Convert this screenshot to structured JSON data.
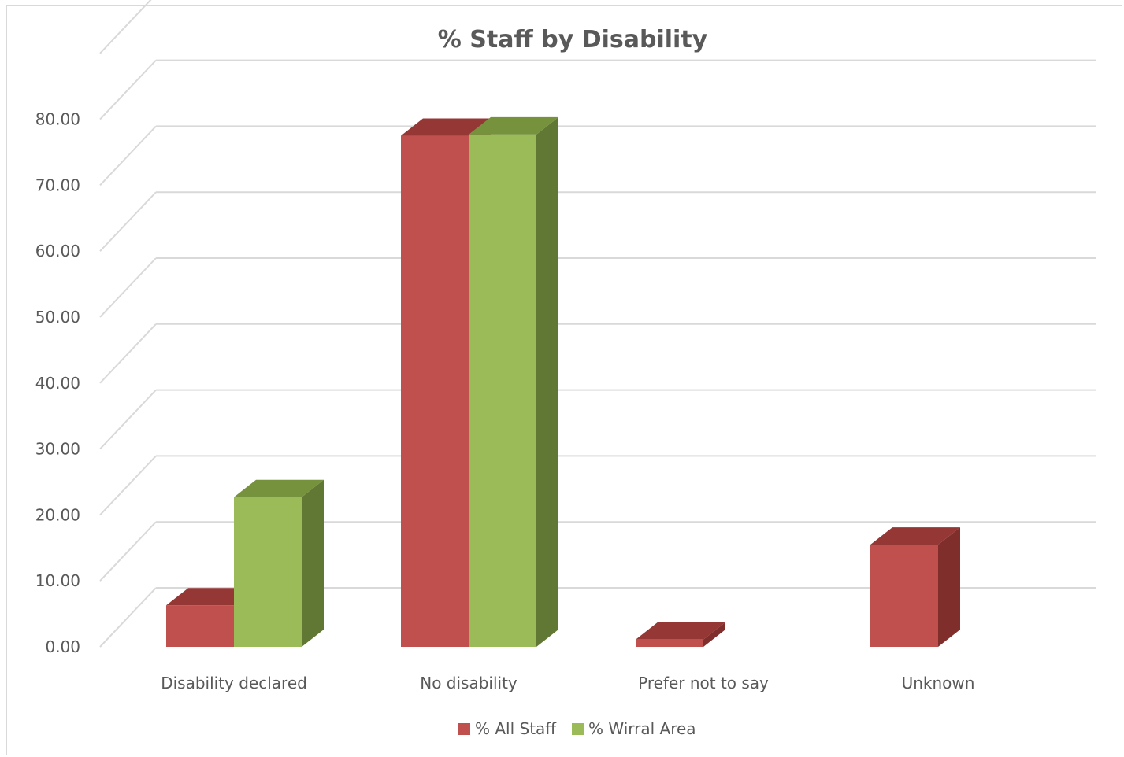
{
  "chart_data": {
    "type": "bar",
    "title": "% Staff by Disability",
    "categories": [
      "Disability declared",
      "No disability",
      "Prefer not to say",
      "Unknown"
    ],
    "series": [
      {
        "name": "% All Staff",
        "values": [
          6.3,
          77.5,
          1.1,
          15.5
        ],
        "color": "#C0504D",
        "side_color": "#7F2E2C",
        "top_color": "#953735"
      },
      {
        "name": "% Wirral Area",
        "values": [
          22.7,
          77.7,
          0,
          0
        ],
        "color": "#9BBB59",
        "side_color": "#617835",
        "top_color": "#76923C"
      }
    ],
    "ylim": [
      0,
      80
    ],
    "yticks": [
      "0.00",
      "10.00",
      "20.00",
      "30.00",
      "40.00",
      "50.00",
      "60.00",
      "70.00",
      "80.00"
    ],
    "ytick_values": [
      0,
      10,
      20,
      30,
      40,
      50,
      60,
      70,
      80
    ],
    "grid": true,
    "legend_position": "bottom",
    "style": "3d-clustered-column"
  }
}
